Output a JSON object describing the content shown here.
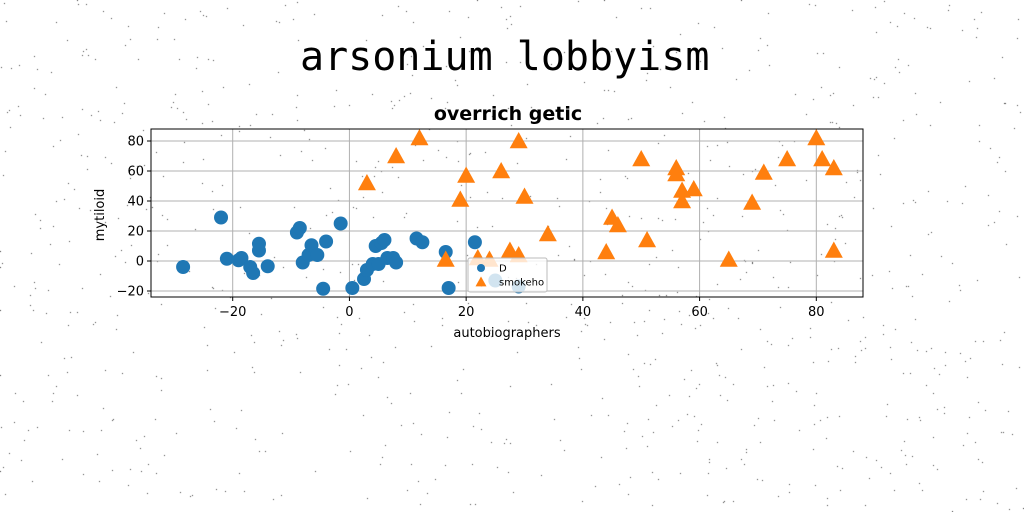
{
  "figure": {
    "suptitle": "arsonium lobbyism"
  },
  "chart_data": {
    "type": "scatter",
    "title": "overrich getic",
    "xlabel": "autobiographers",
    "ylabel": "mytiloid",
    "xlim": [
      -34,
      88
    ],
    "ylim": [
      -24,
      88
    ],
    "xticks": [
      -20,
      0,
      20,
      40,
      60,
      80
    ],
    "yticks": [
      -20,
      0,
      20,
      40,
      60,
      80
    ],
    "grid": true,
    "legend_position": "lower center",
    "series": [
      {
        "name": "D",
        "marker": "circle",
        "color": "#1f77b4",
        "points": [
          [
            -28.5,
            -4
          ],
          [
            -22,
            29
          ],
          [
            -21,
            1.5
          ],
          [
            -19,
            0.5
          ],
          [
            -18.5,
            2
          ],
          [
            -17,
            -4
          ],
          [
            -16.5,
            -8
          ],
          [
            -15.5,
            11.5
          ],
          [
            -15.5,
            7
          ],
          [
            -14,
            -3.5
          ],
          [
            -9,
            19
          ],
          [
            -8.5,
            22
          ],
          [
            -8,
            -1
          ],
          [
            -7,
            4
          ],
          [
            -6.5,
            10.5
          ],
          [
            -5.5,
            4
          ],
          [
            -4.5,
            -18.5
          ],
          [
            -4,
            13
          ],
          [
            -1.5,
            25
          ],
          [
            0.5,
            -18
          ],
          [
            2.5,
            -12
          ],
          [
            3,
            -6
          ],
          [
            4,
            -2
          ],
          [
            4.5,
            10
          ],
          [
            5,
            -2
          ],
          [
            5.5,
            12
          ],
          [
            6,
            14
          ],
          [
            6.5,
            2
          ],
          [
            7.5,
            2
          ],
          [
            8,
            -1
          ],
          [
            11.5,
            15
          ],
          [
            12.5,
            12.5
          ],
          [
            16.5,
            6
          ],
          [
            17,
            -18
          ],
          [
            21.5,
            12.5
          ],
          [
            25,
            -13
          ],
          [
            29,
            -17
          ]
        ]
      },
      {
        "name": "smokeho",
        "marker": "triangle",
        "color": "#ff7f0e",
        "points": [
          [
            3,
            52
          ],
          [
            8,
            70
          ],
          [
            12,
            82
          ],
          [
            16.5,
            1
          ],
          [
            19,
            41
          ],
          [
            20,
            57
          ],
          [
            22,
            2
          ],
          [
            24,
            1
          ],
          [
            26,
            60
          ],
          [
            27.5,
            7
          ],
          [
            29,
            80
          ],
          [
            29,
            4
          ],
          [
            30,
            43
          ],
          [
            34,
            18
          ],
          [
            44,
            6
          ],
          [
            45,
            29
          ],
          [
            46,
            24
          ],
          [
            50,
            68
          ],
          [
            51,
            14
          ],
          [
            56,
            62
          ],
          [
            56,
            58
          ],
          [
            57,
            47
          ],
          [
            57,
            40
          ],
          [
            59,
            48
          ],
          [
            65,
            1
          ],
          [
            69,
            39
          ],
          [
            71,
            59
          ],
          [
            75,
            68
          ],
          [
            80,
            82
          ],
          [
            81,
            68
          ],
          [
            83,
            62
          ],
          [
            83,
            7
          ]
        ]
      }
    ]
  }
}
